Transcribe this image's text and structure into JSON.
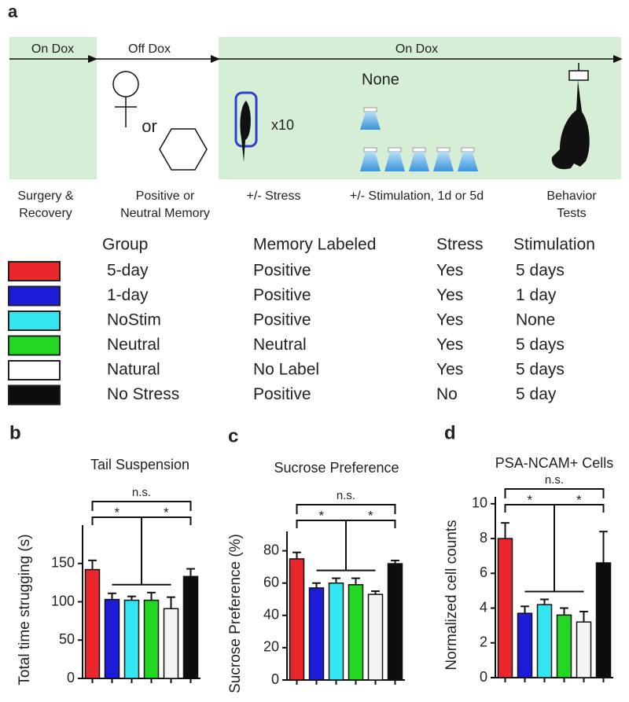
{
  "panel_a": {
    "label": "a",
    "timeline": [
      "On Dox",
      "Off Dox",
      "On Dox"
    ],
    "or_text": "or",
    "repeat_text": "x10",
    "none_text": "None",
    "steps": [
      [
        "Surgery &",
        "Recovery"
      ],
      [
        "Positive or",
        "Neutral Memory"
      ],
      [
        "+/- Stress"
      ],
      [
        "+/- Stimulation, 1d or 5d"
      ],
      [
        "Behavior",
        "Tests"
      ]
    ],
    "table": {
      "header": [
        "Group",
        "Memory Labeled",
        "Stress",
        "Stimulation"
      ],
      "rows": [
        [
          "5-day",
          "Positive",
          "Yes",
          "5 days"
        ],
        [
          "1-day",
          "Positive",
          "Yes",
          "1 day"
        ],
        [
          "NoStim",
          "Positive",
          "Yes",
          "None"
        ],
        [
          "Neutral",
          "Neutral",
          "Yes",
          "5 days"
        ],
        [
          "Natural",
          "No Label",
          "Yes",
          "5 days"
        ],
        [
          "No Stress",
          "Positive",
          "No",
          "5 day"
        ]
      ],
      "swatch_colors": [
        "#e8262b",
        "#1c1cd8",
        "#33e6f2",
        "#22d822",
        "#ffffff",
        "#0d0d0d"
      ]
    }
  },
  "chart_data": [
    {
      "type": "bar",
      "label": "b",
      "title": "Tail Suspension",
      "y_label": "Total time strugging (s)",
      "categories": [
        null,
        null,
        null,
        null,
        null,
        null
      ],
      "values": [
        142,
        103,
        102,
        102,
        91,
        133
      ],
      "errors": [
        12,
        8,
        5,
        10,
        15,
        10
      ],
      "colors": [
        "#e8262b",
        "#1c1cd8",
        "#33e6f2",
        "#22d822",
        "#f4f4f4",
        "#0d0d0d"
      ],
      "ylim": [
        0,
        200
      ],
      "yticks": [
        0,
        50,
        100,
        150
      ],
      "annotations": [
        "n.s.",
        "*",
        "*"
      ]
    },
    {
      "type": "bar",
      "label": "c",
      "title": "Sucrose Preference",
      "y_label": "Sucrose Preference (%)",
      "categories": [
        null,
        null,
        null,
        null,
        null,
        null
      ],
      "values": [
        75,
        57,
        60,
        59,
        53,
        72
      ],
      "errors": [
        4,
        3,
        3,
        4,
        2,
        2
      ],
      "colors": [
        "#e8262b",
        "#1c1cd8",
        "#33e6f2",
        "#22d822",
        "#f4f4f4",
        "#0d0d0d"
      ],
      "ylim": [
        0,
        92
      ],
      "yticks": [
        0,
        20,
        40,
        60,
        80
      ],
      "annotations": [
        "n.s.",
        "*",
        "*"
      ]
    },
    {
      "type": "bar",
      "label": "d",
      "title": "PSA-NCAM+ Cells",
      "y_label": "Normalized cell counts",
      "categories": [
        null,
        null,
        null,
        null,
        null,
        null
      ],
      "values": [
        8.0,
        3.7,
        4.2,
        3.6,
        3.2,
        6.6
      ],
      "errors": [
        0.9,
        0.4,
        0.3,
        0.4,
        0.6,
        1.8
      ],
      "colors": [
        "#e8262b",
        "#1c1cd8",
        "#33e6f2",
        "#22d822",
        "#f4f4f4",
        "#0d0d0d"
      ],
      "ylim": [
        0,
        10.4
      ],
      "yticks": [
        0,
        2,
        4,
        6,
        8,
        10
      ],
      "annotations": [
        "n.s.",
        "*",
        "*"
      ]
    }
  ]
}
